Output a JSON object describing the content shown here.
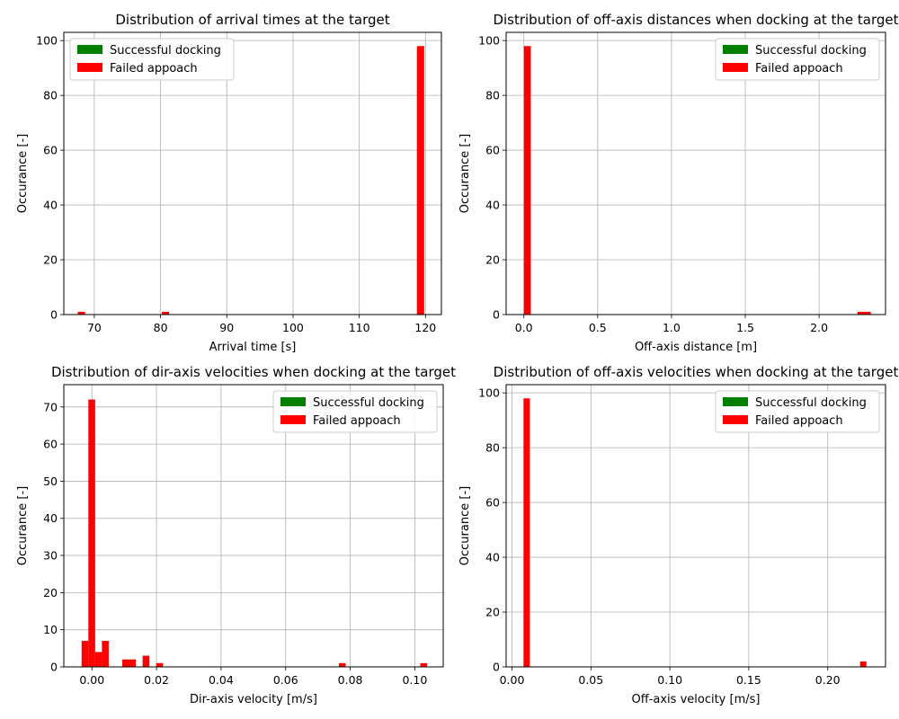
{
  "chart_data": [
    {
      "type": "bar",
      "title": "Distribution of arrival times at the target",
      "xlabel": "Arrival time [s]",
      "ylabel": "Occurance [-]",
      "xlim": [
        65.4,
        122.4
      ],
      "ylim": [
        0,
        103
      ],
      "xticks": [
        70,
        80,
        90,
        100,
        110,
        120
      ],
      "xtick_labels": [
        "70",
        "80",
        "90",
        "100",
        "110",
        "120"
      ],
      "yticks": [
        0,
        20,
        40,
        60,
        80,
        100
      ],
      "ytick_labels": [
        "0",
        "20",
        "40",
        "60",
        "80",
        "100"
      ],
      "grid": true,
      "legend_position": "top-left",
      "series": [
        {
          "name": "Successful docking",
          "color": "#008000",
          "bars": []
        },
        {
          "name": "Failed appoach",
          "color": "#ff0000",
          "bars": [
            {
              "x0": 67.5,
              "x1": 68.6,
              "value": 1
            },
            {
              "x0": 80.2,
              "x1": 81.3,
              "value": 1
            },
            {
              "x0": 118.7,
              "x1": 119.8,
              "value": 98
            }
          ]
        }
      ]
    },
    {
      "type": "bar",
      "title": "Distribution of off-axis distances when docking at the target",
      "xlabel": "Off-axis distance [m]",
      "ylabel": "Occurance [-]",
      "xlim": [
        -0.12,
        2.45
      ],
      "ylim": [
        0,
        103
      ],
      "xticks": [
        0,
        0.5,
        1,
        1.5,
        2
      ],
      "xtick_labels": [
        "0.0",
        "0.5",
        "1.0",
        "1.5",
        "2.0"
      ],
      "yticks": [
        0,
        20,
        40,
        60,
        80,
        100
      ],
      "ytick_labels": [
        "0",
        "20",
        "40",
        "60",
        "80",
        "100"
      ],
      "grid": true,
      "legend_position": "top-right",
      "series": [
        {
          "name": "Successful docking",
          "color": "#008000",
          "bars": []
        },
        {
          "name": "Failed appoach",
          "color": "#ff0000",
          "bars": [
            {
              "x0": 0.0,
              "x1": 0.047,
              "value": 98
            },
            {
              "x0": 2.26,
              "x1": 2.35,
              "value": 1
            }
          ]
        }
      ]
    },
    {
      "type": "bar",
      "title": "Distribution of dir-axis velocities when docking at the target",
      "xlabel": "Dir-axis velocity [m/s]",
      "ylabel": "Occurance [-]",
      "xlim": [
        -0.0087,
        0.1088
      ],
      "ylim": [
        0,
        76
      ],
      "xticks": [
        0,
        0.02,
        0.04,
        0.06,
        0.08,
        0.1
      ],
      "xtick_labels": [
        "0.00",
        "0.02",
        "0.04",
        "0.06",
        "0.08",
        "0.10"
      ],
      "yticks": [
        0,
        10,
        20,
        30,
        40,
        50,
        60,
        70
      ],
      "ytick_labels": [
        "0",
        "10",
        "20",
        "30",
        "40",
        "50",
        "60",
        "70"
      ],
      "grid": true,
      "legend_position": "top-right",
      "series": [
        {
          "name": "Successful docking",
          "color": "#008000",
          "bars": []
        },
        {
          "name": "Failed appoach",
          "color": "#ff0000",
          "bars": [
            {
              "x0": -0.0032,
              "x1": -0.0011,
              "value": 7
            },
            {
              "x0": -0.0011,
              "x1": 0.001,
              "value": 72
            },
            {
              "x0": 0.001,
              "x1": 0.0031,
              "value": 4
            },
            {
              "x0": 0.0031,
              "x1": 0.0052,
              "value": 7
            },
            {
              "x0": 0.0094,
              "x1": 0.0136,
              "value": 2
            },
            {
              "x0": 0.0157,
              "x1": 0.0178,
              "value": 3
            },
            {
              "x0": 0.0199,
              "x1": 0.022,
              "value": 1
            },
            {
              "x0": 0.0765,
              "x1": 0.0786,
              "value": 1
            },
            {
              "x0": 0.1017,
              "x1": 0.1038,
              "value": 1
            }
          ]
        }
      ]
    },
    {
      "type": "bar",
      "title": "Distribution of off-axis velocities when docking at the target",
      "xlabel": "Off-axis velocity [m/s]",
      "ylabel": "Occurance [-]",
      "xlim": [
        -0.0037,
        0.2366
      ],
      "ylim": [
        0,
        103
      ],
      "xticks": [
        0,
        0.05,
        0.1,
        0.15,
        0.2
      ],
      "xtick_labels": [
        "0.00",
        "0.05",
        "0.10",
        "0.15",
        "0.20"
      ],
      "yticks": [
        0,
        20,
        40,
        60,
        80,
        100
      ],
      "ytick_labels": [
        "0",
        "20",
        "40",
        "60",
        "80",
        "100"
      ],
      "grid": true,
      "legend_position": "top-right",
      "series": [
        {
          "name": "Successful docking",
          "color": "#008000",
          "bars": []
        },
        {
          "name": "Failed appoach",
          "color": "#ff0000",
          "bars": [
            {
              "x0": 0.0073,
              "x1": 0.0113,
              "value": 98
            },
            {
              "x0": 0.2205,
              "x1": 0.2245,
              "value": 2
            }
          ]
        }
      ]
    }
  ]
}
